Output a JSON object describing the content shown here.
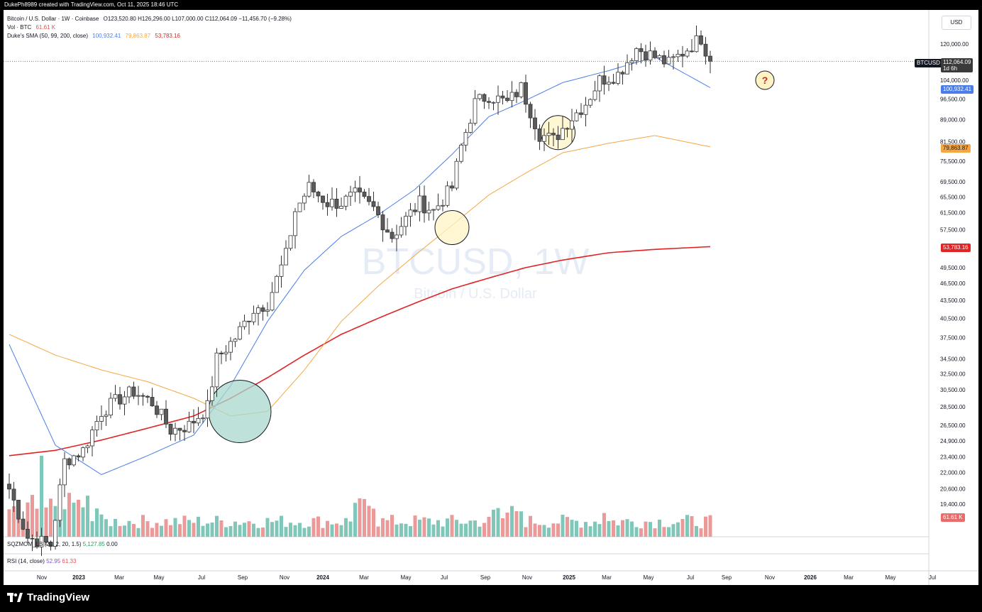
{
  "header": {
    "text": "DukePh8989 created with TradingView.com, Oct 11, 2025 18:46 UTC"
  },
  "legend": {
    "symbol": "Bitcoin / U.S. Dollar · 1W · Coinbase",
    "ohlc": "O123,520.80  H126,296.00  L107,000.00  C112,064.09  −11,456.70 (−9.28%)",
    "vol_label": "Vol · BTC",
    "vol_value": "61.61 K",
    "sma_label": "Duke's SMA (50, 99, 200, close)",
    "sma50_value": "100,932.41",
    "sma99_value": "79,863.87",
    "sma200_value": "53,783.16"
  },
  "colors": {
    "up": "#ffffff",
    "down": "#5b5b5b",
    "vol_up": "#7fc8b9",
    "vol_down": "#eb9a9a",
    "sma50": "#4a7de8",
    "sma99": "#f5a742",
    "sma200": "#e02424",
    "price_line": "#6b6b6b"
  },
  "watermark": {
    "main": "BTCUSD, 1W",
    "sub": "Bitcoin / U.S. Dollar"
  },
  "price_axis": {
    "currency": "USD",
    "ticks": [
      "120,000.00",
      "104,000.00",
      "96,500.00",
      "89,000.00",
      "81,500.00",
      "75,500.00",
      "69,500.00",
      "65,500.00",
      "61,500.00",
      "57,500.00",
      "49,500.00",
      "46,500.00",
      "43,500.00",
      "40,500.00",
      "37,500.00",
      "34,500.00",
      "32,500.00",
      "30,500.00",
      "28,500.00",
      "26,500.00",
      "24,900.00",
      "23,400.00",
      "22,000.00",
      "20,600.00",
      "19,400.00"
    ],
    "tags": {
      "symbol": "BTCUSD",
      "last": "112,064.09",
      "countdown": "1d 6h",
      "sma50": "100,932.41",
      "sma99": "79,863.87",
      "sma200": "53,783.16",
      "volume": "61.61 K"
    }
  },
  "time_axis": [
    "Nov",
    "2023",
    "Mar",
    "May",
    "Jul",
    "Sep",
    "Nov",
    "2024",
    "Mar",
    "May",
    "Jul",
    "Sep",
    "Nov",
    "2025",
    "Mar",
    "May",
    "Jul",
    "Sep",
    "Nov",
    "2026",
    "Mar",
    "May",
    "Jul"
  ],
  "panes": {
    "sqzmom": {
      "label": "SQZMOM_LB (20, 2, 20, 1.5)",
      "v1": "5,127.85",
      "v2": "0.00"
    },
    "rsi": {
      "label": "RSI (14, close)",
      "v1": "52.95",
      "v2": "61.33"
    }
  },
  "annotation": {
    "question": "?"
  },
  "brand": {
    "name": "TradingView"
  },
  "chart_data": {
    "type": "candlestick",
    "interval": "1W",
    "y_scale": "log",
    "ylim": [
      19000,
      125000
    ],
    "x_start": "2022-10-31",
    "weeks": 155,
    "close_anchors": [
      [
        0,
        20600
      ],
      [
        4,
        17000
      ],
      [
        9,
        16500
      ],
      [
        12,
        23000
      ],
      [
        16,
        24000
      ],
      [
        20,
        28000
      ],
      [
        24,
        29500
      ],
      [
        27,
        30300
      ],
      [
        31,
        29000
      ],
      [
        35,
        26000
      ],
      [
        39,
        26500
      ],
      [
        43,
        28500
      ],
      [
        45,
        34500
      ],
      [
        49,
        37500
      ],
      [
        53,
        42000
      ],
      [
        56,
        43000
      ],
      [
        60,
        52000
      ],
      [
        62,
        62000
      ],
      [
        65,
        68000
      ],
      [
        69,
        64000
      ],
      [
        72,
        64000
      ],
      [
        75,
        66000
      ],
      [
        79,
        62500
      ],
      [
        83,
        56000
      ],
      [
        86,
        60000
      ],
      [
        89,
        64000
      ],
      [
        92,
        62000
      ],
      [
        96,
        68000
      ],
      [
        98,
        80000
      ],
      [
        101,
        95000
      ],
      [
        104,
        98000
      ],
      [
        108,
        95000
      ],
      [
        111,
        101000
      ],
      [
        115,
        84000
      ],
      [
        118,
        82000
      ],
      [
        121,
        88000
      ],
      [
        125,
        95000
      ],
      [
        128,
        104000
      ],
      [
        132,
        106500
      ],
      [
        136,
        118000
      ],
      [
        139,
        115000
      ],
      [
        143,
        111000
      ],
      [
        146,
        116000
      ],
      [
        150,
        123000
      ],
      [
        152,
        112064
      ]
    ],
    "sma50": [
      [
        0,
        36500
      ],
      [
        10,
        24500
      ],
      [
        20,
        21800
      ],
      [
        30,
        23500
      ],
      [
        40,
        25500
      ],
      [
        48,
        31000
      ],
      [
        56,
        40000
      ],
      [
        64,
        49000
      ],
      [
        72,
        56000
      ],
      [
        80,
        61000
      ],
      [
        88,
        67500
      ],
      [
        96,
        77500
      ],
      [
        104,
        90000
      ],
      [
        112,
        96000
      ],
      [
        120,
        103000
      ],
      [
        130,
        108000
      ],
      [
        140,
        114000
      ],
      [
        152,
        100932
      ]
    ],
    "sma99": [
      [
        0,
        38000
      ],
      [
        10,
        35000
      ],
      [
        20,
        33000
      ],
      [
        30,
        31500
      ],
      [
        40,
        29500
      ],
      [
        48,
        27500
      ],
      [
        56,
        28000
      ],
      [
        64,
        33000
      ],
      [
        72,
        40000
      ],
      [
        80,
        46000
      ],
      [
        88,
        52000
      ],
      [
        96,
        58500
      ],
      [
        104,
        66000
      ],
      [
        112,
        72000
      ],
      [
        120,
        78000
      ],
      [
        130,
        81000
      ],
      [
        140,
        83500
      ],
      [
        152,
        79864
      ]
    ],
    "sma200": [
      [
        0,
        23500
      ],
      [
        10,
        24000
      ],
      [
        20,
        25000
      ],
      [
        30,
        26200
      ],
      [
        40,
        27500
      ],
      [
        48,
        29500
      ],
      [
        56,
        32000
      ],
      [
        64,
        35000
      ],
      [
        72,
        38000
      ],
      [
        80,
        40500
      ],
      [
        88,
        43000
      ],
      [
        96,
        45500
      ],
      [
        104,
        47500
      ],
      [
        112,
        49500
      ],
      [
        120,
        51000
      ],
      [
        130,
        52500
      ],
      [
        140,
        53200
      ],
      [
        152,
        53783
      ]
    ],
    "volume_max": 62,
    "volume_last": 61.61,
    "highlights": [
      {
        "week": 50,
        "price": 28000,
        "radius": 44,
        "color": "#a8d8cc"
      },
      {
        "week": 96,
        "price": 58000,
        "radius": 24,
        "color": "#fff3c4"
      },
      {
        "week": 119,
        "price": 84500,
        "radius": 24,
        "color": "#fff3c4"
      }
    ]
  }
}
